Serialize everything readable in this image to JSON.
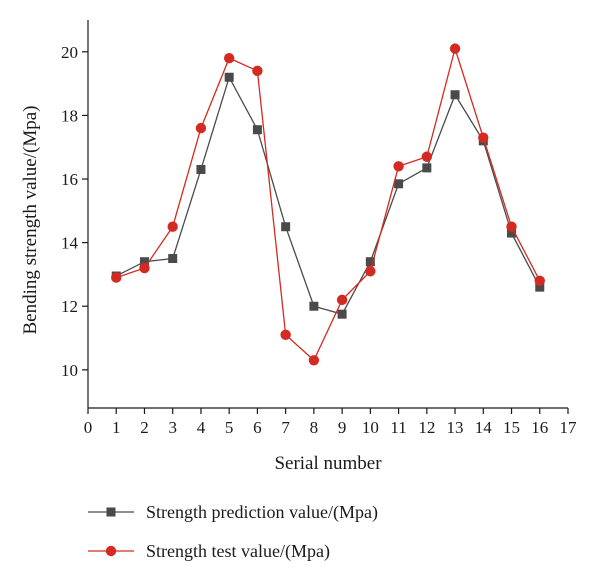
{
  "chart_data": {
    "type": "line",
    "xlabel": "Serial number",
    "ylabel": "Bending strength value/(Mpa)",
    "xlim": [
      0,
      17
    ],
    "ylim": [
      8.8,
      21
    ],
    "x_ticks": [
      0,
      1,
      2,
      3,
      4,
      5,
      6,
      7,
      8,
      9,
      10,
      11,
      12,
      13,
      14,
      15,
      16,
      17
    ],
    "y_ticks": [
      10,
      12,
      14,
      16,
      18,
      20
    ],
    "grid": false,
    "legend_position": "bottom",
    "x": [
      1,
      2,
      3,
      4,
      5,
      6,
      7,
      8,
      9,
      10,
      11,
      12,
      13,
      14,
      15,
      16
    ],
    "series": [
      {
        "name": "Strength prediction value/(Mpa)",
        "marker": "square",
        "color": "#4a4a4a",
        "values": [
          12.95,
          13.4,
          13.5,
          16.3,
          19.2,
          17.55,
          14.5,
          12.0,
          11.75,
          13.4,
          15.85,
          16.35,
          18.65,
          17.2,
          14.3,
          12.6
        ]
      },
      {
        "name": "Strength test value/(Mpa)",
        "marker": "circle",
        "color": "#d42a22",
        "values": [
          12.9,
          13.2,
          14.5,
          17.6,
          19.8,
          19.4,
          11.1,
          10.3,
          12.2,
          13.1,
          16.4,
          16.7,
          20.1,
          17.3,
          14.5,
          12.8
        ]
      }
    ]
  }
}
